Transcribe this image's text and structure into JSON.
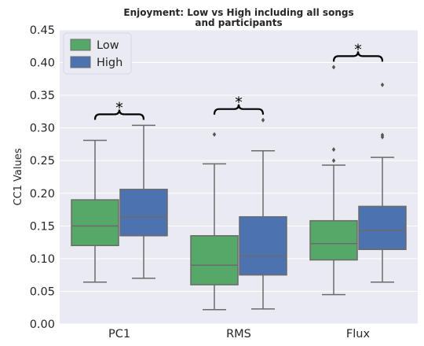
{
  "chart_data": {
    "type": "box",
    "title_lines": [
      "Enjoyment: Low vs High including all songs",
      "and participants"
    ],
    "xlabel": "",
    "ylabel": "CC1 Values",
    "ylim": [
      0.0,
      0.45
    ],
    "yticks": [
      0.0,
      0.05,
      0.1,
      0.15,
      0.2,
      0.25,
      0.3,
      0.35,
      0.4,
      0.45
    ],
    "ytick_labels": [
      "0.00",
      "0.05",
      "0.10",
      "0.15",
      "0.20",
      "0.25",
      "0.30",
      "0.35",
      "0.40",
      "0.45"
    ],
    "categories": [
      "PC1",
      "RMS",
      "Flux"
    ],
    "grid": true,
    "legend_position": "top-left",
    "significance_marker": "*",
    "significant_categories": [
      "PC1",
      "RMS",
      "Flux"
    ],
    "background_color": "#EAEAF2",
    "series": [
      {
        "name": "Low",
        "color": "#55A868",
        "boxes": [
          {
            "min": 0.064,
            "q1": 0.12,
            "median": 0.15,
            "q3": 0.19,
            "max": 0.281,
            "outliers": []
          },
          {
            "min": 0.022,
            "q1": 0.06,
            "median": 0.09,
            "q3": 0.135,
            "max": 0.245,
            "outliers": [
              0.29
            ]
          },
          {
            "min": 0.045,
            "q1": 0.098,
            "median": 0.123,
            "q3": 0.158,
            "max": 0.243,
            "outliers": [
              0.25,
              0.267,
              0.393
            ]
          }
        ]
      },
      {
        "name": "High",
        "color": "#4C72B0",
        "boxes": [
          {
            "min": 0.07,
            "q1": 0.135,
            "median": 0.164,
            "q3": 0.206,
            "max": 0.304,
            "outliers": []
          },
          {
            "min": 0.023,
            "q1": 0.075,
            "median": 0.104,
            "q3": 0.164,
            "max": 0.265,
            "outliers": [
              0.312
            ]
          },
          {
            "min": 0.064,
            "q1": 0.114,
            "median": 0.143,
            "q3": 0.18,
            "max": 0.255,
            "outliers": [
              0.286,
              0.289,
              0.366
            ]
          }
        ]
      }
    ]
  }
}
